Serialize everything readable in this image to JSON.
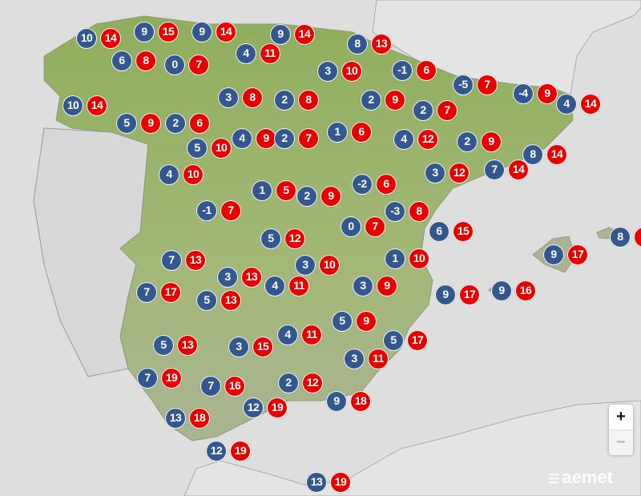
{
  "colors": {
    "min_temp": "#33588f",
    "max_temp": "#e80000",
    "sea": "#dedede",
    "land": "#9bb46a"
  },
  "stations": [
    {
      "min": "10",
      "max": "14"
    },
    {
      "min": "9",
      "max": "15"
    },
    {
      "min": "9",
      "max": "14"
    },
    {
      "min": "6",
      "max": "8"
    },
    {
      "min": "0",
      "max": "7"
    },
    {
      "min": "9",
      "max": "14"
    },
    {
      "min": "4",
      "max": "11"
    },
    {
      "min": "8",
      "max": "13"
    },
    {
      "min": "3",
      "max": "10"
    },
    {
      "min": "-1",
      "max": "6"
    },
    {
      "min": "10",
      "max": "14"
    },
    {
      "min": "3",
      "max": "8"
    },
    {
      "min": "2",
      "max": "8"
    },
    {
      "min": "2",
      "max": "9"
    },
    {
      "min": "-5",
      "max": "7"
    },
    {
      "min": "-4",
      "max": "9"
    },
    {
      "min": "4",
      "max": "14"
    },
    {
      "min": "2",
      "max": "7"
    },
    {
      "min": "5",
      "max": "9"
    },
    {
      "min": "2",
      "max": "6"
    },
    {
      "min": "4",
      "max": "9"
    },
    {
      "min": "2",
      "max": "7"
    },
    {
      "min": "1",
      "max": "6"
    },
    {
      "min": "4",
      "max": "12"
    },
    {
      "min": "2",
      "max": "9"
    },
    {
      "min": "5",
      "max": "10"
    },
    {
      "min": "8",
      "max": "14"
    },
    {
      "min": "4",
      "max": "10"
    },
    {
      "min": "3",
      "max": "12"
    },
    {
      "min": "7",
      "max": "14"
    },
    {
      "min": "1",
      "max": "5"
    },
    {
      "min": "2",
      "max": "9"
    },
    {
      "min": "-2",
      "max": "6"
    },
    {
      "min": "-1",
      "max": "7"
    },
    {
      "min": "-3",
      "max": "8"
    },
    {
      "min": "0",
      "max": "7"
    },
    {
      "min": "6",
      "max": "15"
    },
    {
      "min": "5",
      "max": "12"
    },
    {
      "min": "7",
      "max": "13"
    },
    {
      "min": "3",
      "max": "10"
    },
    {
      "min": "1",
      "max": "10"
    },
    {
      "min": "9",
      "max": "17"
    },
    {
      "min": "8"
    },
    {
      "min": "3",
      "max": "13"
    },
    {
      "min": "4",
      "max": "11"
    },
    {
      "min": "3",
      "max": "9"
    },
    {
      "min": "7",
      "max": "17"
    },
    {
      "min": "5",
      "max": "13"
    },
    {
      "min": "9",
      "max": "17"
    },
    {
      "min": "9",
      "max": "16"
    },
    {
      "min": "5",
      "max": "9"
    },
    {
      "min": "4",
      "max": "11"
    },
    {
      "min": "5",
      "max": "17"
    },
    {
      "min": "5",
      "max": "13"
    },
    {
      "min": "3",
      "max": "15"
    },
    {
      "min": "3",
      "max": "11"
    },
    {
      "min": "7",
      "max": "19"
    },
    {
      "min": "7",
      "max": "16"
    },
    {
      "min": "2",
      "max": "12"
    },
    {
      "min": "9",
      "max": "18"
    },
    {
      "min": "12",
      "max": "19"
    },
    {
      "min": "13",
      "max": "18"
    },
    {
      "min": "12",
      "max": "19"
    },
    {
      "min": "13",
      "max": "19"
    }
  ],
  "controls": {
    "zoom_in": "+",
    "zoom_out": "−"
  },
  "logo": {
    "text": "aemet",
    "icon": "aemet-logo-icon"
  }
}
